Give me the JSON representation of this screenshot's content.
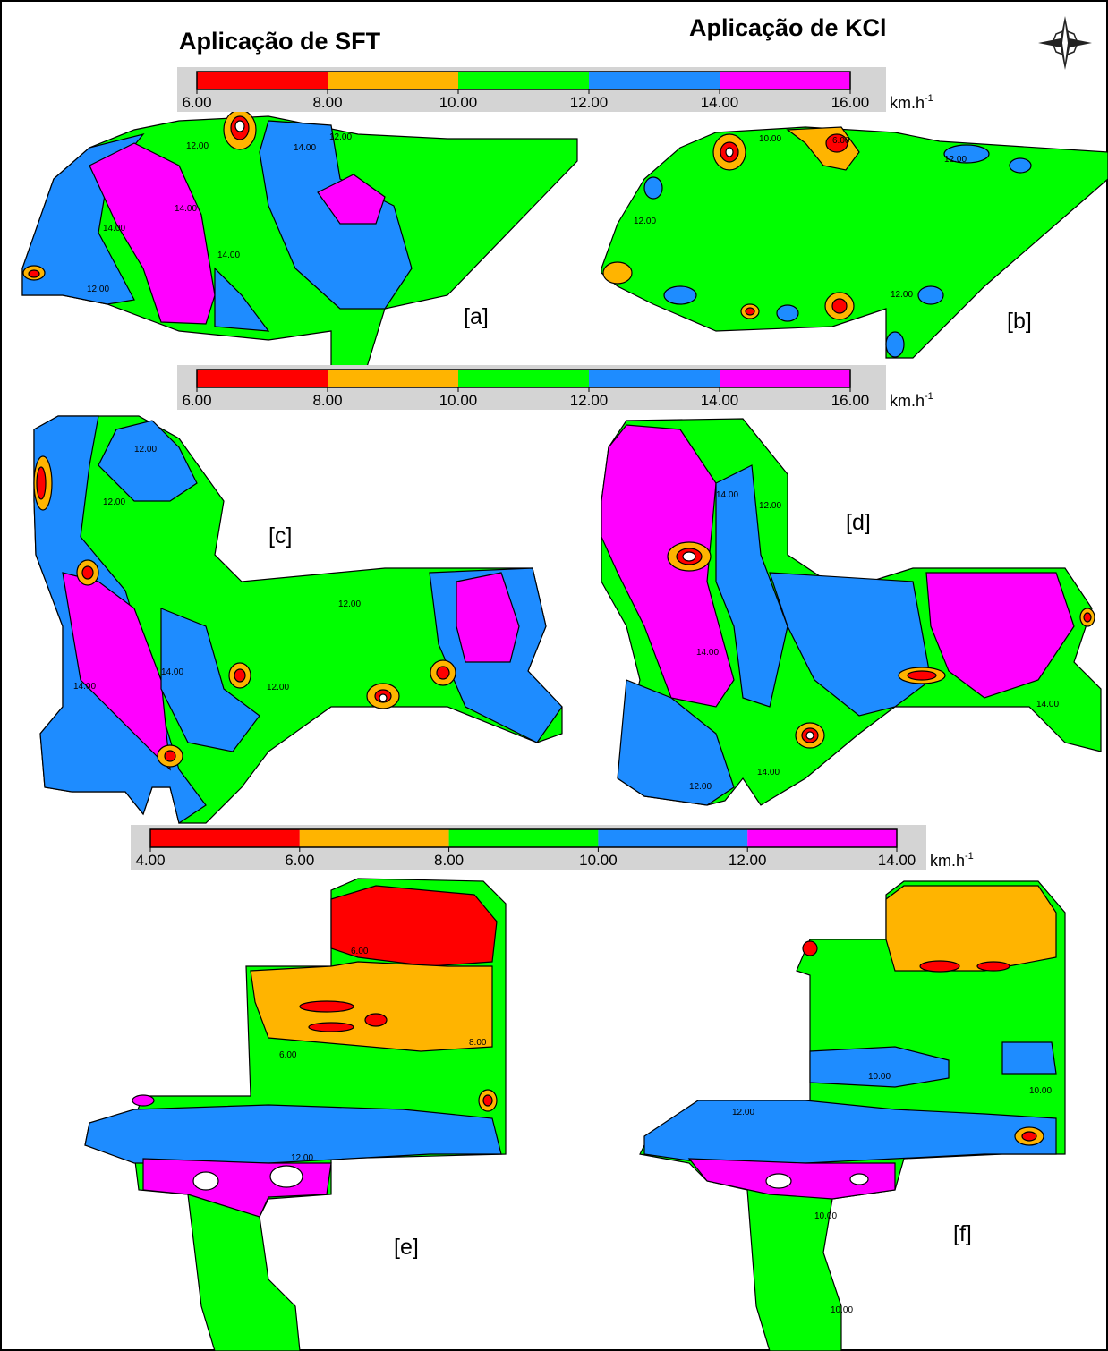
{
  "titles": {
    "left": "Aplicação de SFT",
    "right": "Aplicação de KCl"
  },
  "legends": [
    {
      "range": [
        6,
        16
      ],
      "ticks": [
        {
          "value": 6,
          "label": "6.00"
        },
        {
          "value": 8,
          "label": "8.00"
        },
        {
          "value": 10,
          "label": "10.00"
        },
        {
          "value": 12,
          "label": "12.00"
        },
        {
          "value": 14,
          "label": "14.00"
        },
        {
          "value": 16,
          "label": "16.00"
        }
      ],
      "colors": [
        "#ff0000",
        "#ffb400",
        "#00ff00",
        "#1e8cff",
        "#ff00ff"
      ],
      "unit": "km.h",
      "unit_sup": "-1"
    },
    {
      "range": [
        6,
        16
      ],
      "ticks": [
        {
          "value": 6,
          "label": "6.00"
        },
        {
          "value": 8,
          "label": "8.00"
        },
        {
          "value": 10,
          "label": "10.00"
        },
        {
          "value": 12,
          "label": "12.00"
        },
        {
          "value": 14,
          "label": "14.00"
        },
        {
          "value": 16,
          "label": "16.00"
        }
      ],
      "colors": [
        "#ff0000",
        "#ffb400",
        "#00ff00",
        "#1e8cff",
        "#ff00ff"
      ],
      "unit": "km.h",
      "unit_sup": "-1"
    },
    {
      "range": [
        4,
        14
      ],
      "ticks": [
        {
          "value": 4,
          "label": "4.00"
        },
        {
          "value": 6,
          "label": "6.00"
        },
        {
          "value": 8,
          "label": "8.00"
        },
        {
          "value": 10,
          "label": "10.00"
        },
        {
          "value": 12,
          "label": "12.00"
        },
        {
          "value": 14,
          "label": "14.00"
        }
      ],
      "colors": [
        "#ff0000",
        "#ffb400",
        "#00ff00",
        "#1e8cff",
        "#ff00ff"
      ],
      "unit": "km.h",
      "unit_sup": "-1"
    }
  ],
  "panels": [
    {
      "label": "[a]",
      "contour_labels": [
        "12.00",
        "14.00",
        "12.00",
        "14.00",
        "14.00",
        "14.00",
        "12.00"
      ]
    },
    {
      "label": "[b]",
      "contour_labels": [
        "10.00",
        "6.00",
        "12.00",
        "12.00",
        "12.00"
      ]
    },
    {
      "label": "[c]",
      "contour_labels": [
        "12.00",
        "12.00",
        "12.00",
        "14.00",
        "14.00",
        "12.00"
      ]
    },
    {
      "label": "[d]",
      "contour_labels": [
        "14.00",
        "12.00",
        "14.00",
        "14.00",
        "14.00",
        "12.00"
      ]
    },
    {
      "label": "[e]",
      "contour_labels": [
        "6.00",
        "6.00",
        "8.00",
        "12.00"
      ]
    },
    {
      "label": "[f]",
      "contour_labels": [
        "12.00",
        "10.00",
        "10.00",
        "10.00",
        "10.00"
      ]
    }
  ]
}
